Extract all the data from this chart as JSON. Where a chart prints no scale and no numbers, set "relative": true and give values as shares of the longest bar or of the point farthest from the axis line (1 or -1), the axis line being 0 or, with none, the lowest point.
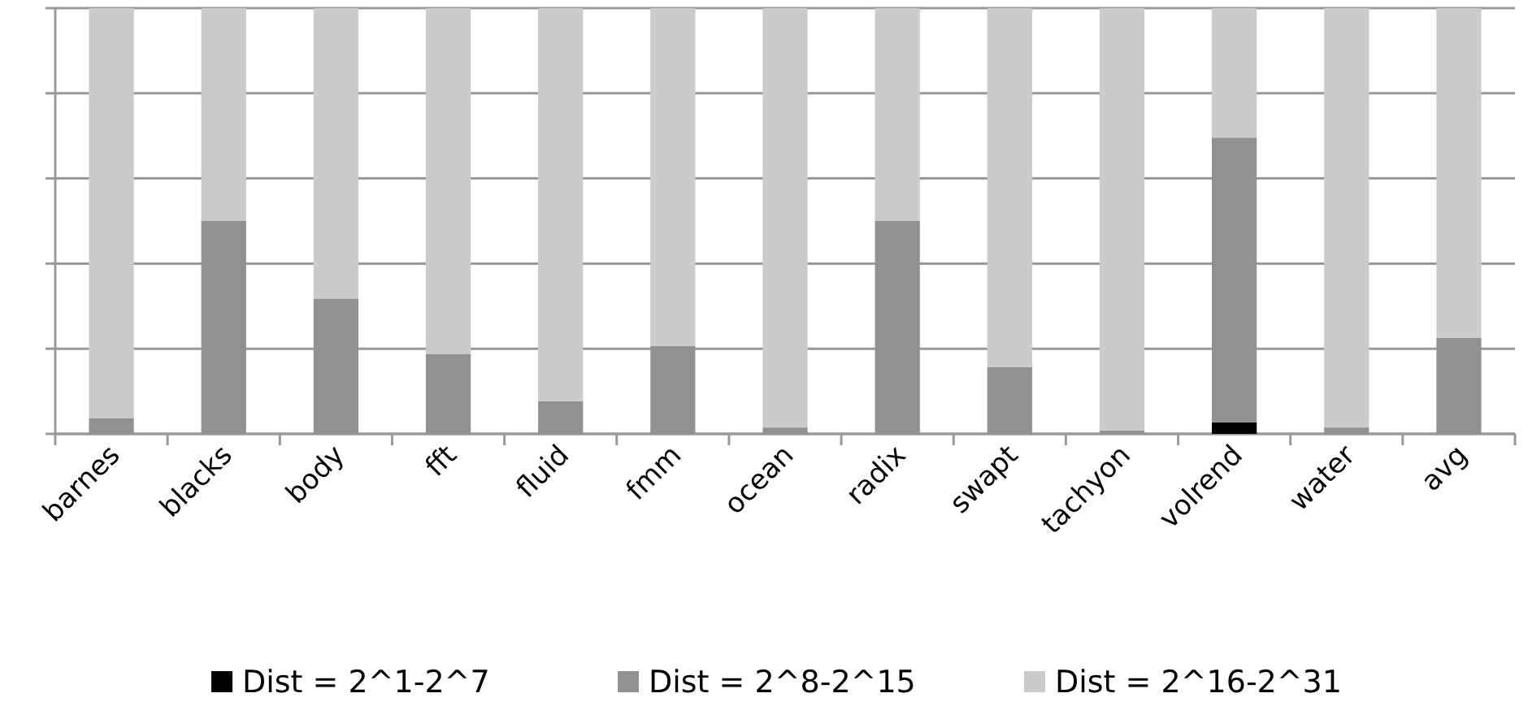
{
  "chart_data": {
    "type": "bar",
    "stacked": true,
    "relative": true,
    "grid": "y",
    "legend": "bottom",
    "categories": [
      "barnes",
      "blacks",
      "body",
      "fft",
      "fluid",
      "fmm",
      "ocean",
      "radix",
      "swapt",
      "tachyon",
      "volrend",
      "water",
      "avg"
    ],
    "series": [
      {
        "name": "Dist = 2^1-2^7",
        "color": "#000000",
        "values": [
          0,
          0,
          0,
          0,
          0,
          0,
          0,
          0,
          0,
          0,
          0.027,
          0,
          0
        ]
      },
      {
        "name": "Dist = 2^8-2^15",
        "color": "#919191",
        "values": [
          0.037,
          0.5,
          0.318,
          0.188,
          0.077,
          0.207,
          0.015,
          0.5,
          0.157,
          0.008,
          0.669,
          0.015,
          0.226
        ]
      },
      {
        "name": "Dist = 2^16-2^31",
        "color": "#cbcbcb",
        "values": [
          0.963,
          0.5,
          0.682,
          0.812,
          0.923,
          0.793,
          0.985,
          0.5,
          0.843,
          0.992,
          0.304,
          0.985,
          0.774
        ]
      }
    ]
  }
}
